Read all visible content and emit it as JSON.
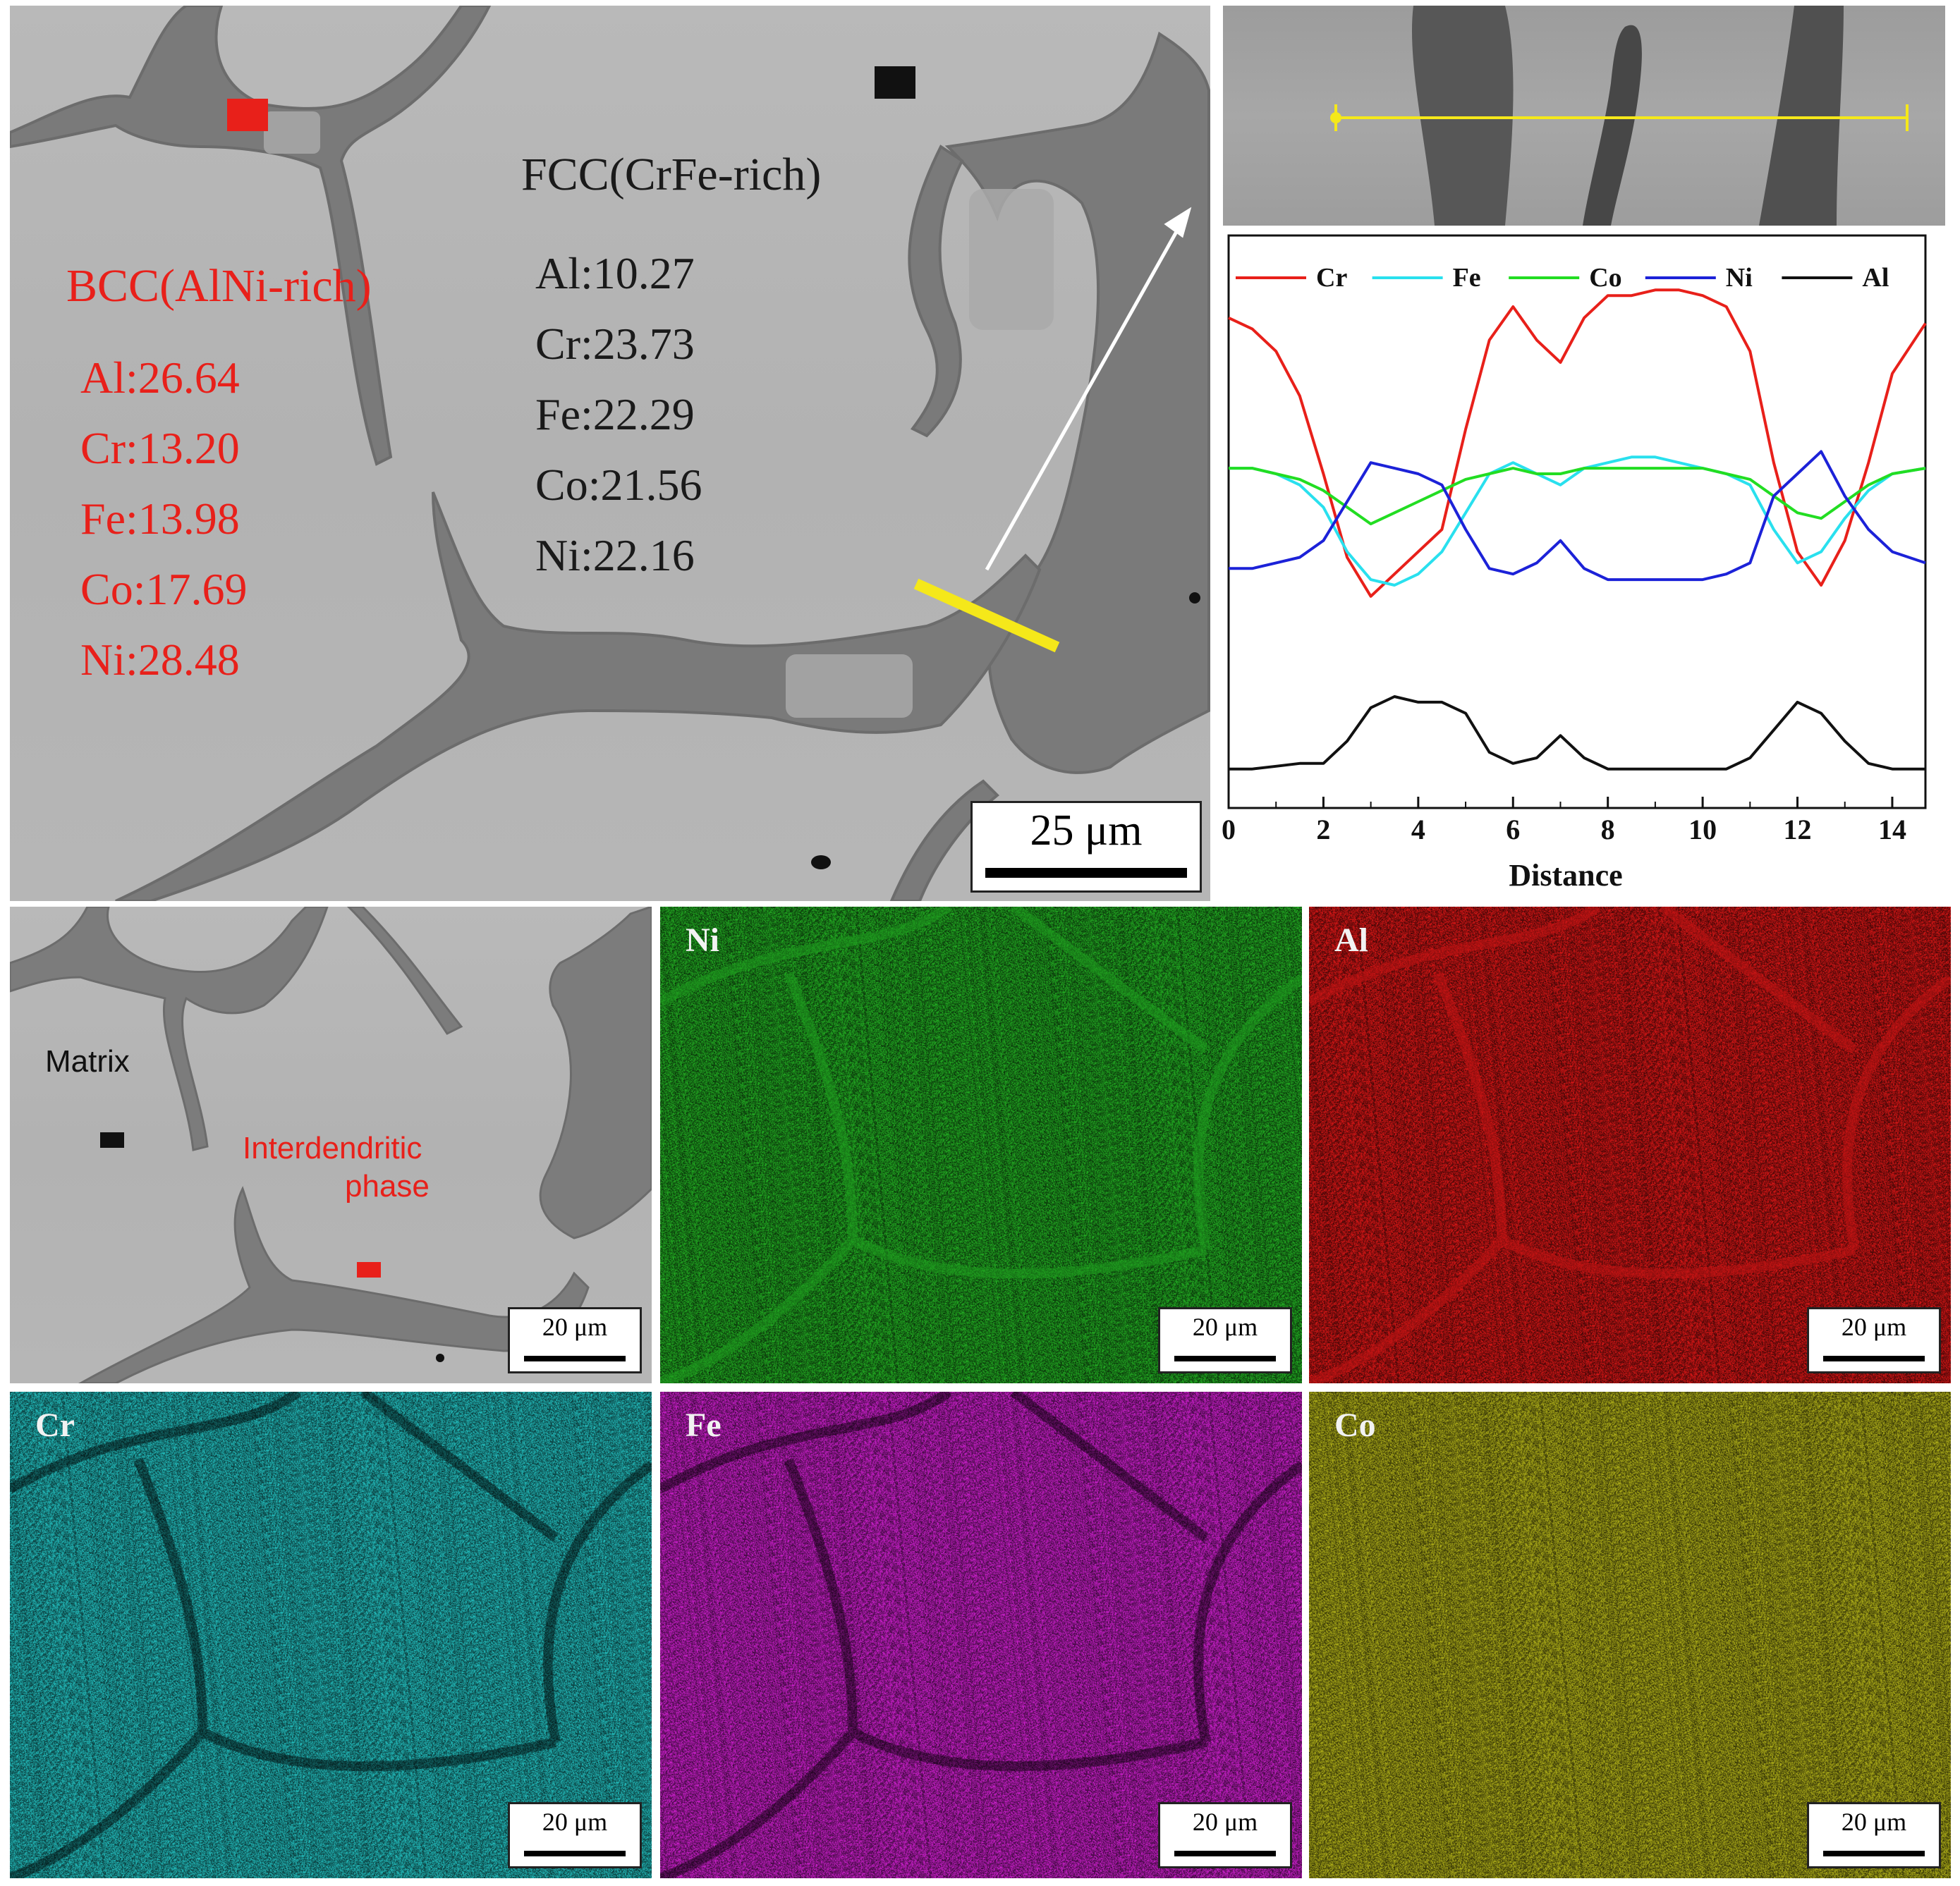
{
  "main_sem": {
    "bcc_title": "BCC(AlNi-rich)",
    "bcc_values": [
      "Al:26.64",
      "Cr:13.20",
      "Fe:13.98",
      "Co:17.69",
      "Ni:28.48"
    ],
    "fcc_title": "FCC(CrFe-rich)",
    "fcc_values": [
      "Al:10.27",
      "Cr:23.73",
      "Fe:22.29",
      "Co:21.56",
      "Ni:22.16"
    ],
    "scale": "25 μm",
    "colors": {
      "bcc_text": "#e8201a",
      "fcc_text": "#1a1a1a",
      "line_scan": "#f5e81a"
    }
  },
  "chart_data": {
    "type": "line",
    "title": "",
    "xlabel": "Distance",
    "ylabel": "",
    "xlim": [
      0,
      14.7
    ],
    "ylim": [
      0,
      100
    ],
    "x_ticks": [
      "0",
      "2",
      "4",
      "6",
      "8",
      "10",
      "12",
      "14"
    ],
    "legend_position": "top",
    "series": [
      {
        "name": "Cr",
        "color": "#e8201a",
        "x": [
          0,
          0.5,
          1,
          1.5,
          2,
          2.5,
          3,
          3.5,
          4,
          4.5,
          5,
          5.5,
          6,
          6.5,
          7,
          7.5,
          8,
          8.5,
          9,
          9.5,
          10,
          10.5,
          11,
          11.5,
          12,
          12.5,
          13,
          13.5,
          14,
          14.7
        ],
        "values": [
          88,
          86,
          82,
          74,
          60,
          45,
          38,
          42,
          46,
          50,
          68,
          84,
          90,
          84,
          80,
          88,
          92,
          92,
          93,
          93,
          92,
          90,
          82,
          62,
          46,
          40,
          48,
          62,
          78,
          87
        ]
      },
      {
        "name": "Fe",
        "color": "#29e0ee",
        "x": [
          0,
          0.5,
          1,
          1.5,
          2,
          2.5,
          3,
          3.5,
          4,
          4.5,
          5,
          5.5,
          6,
          6.5,
          7,
          7.5,
          8,
          8.5,
          9,
          9.5,
          10,
          10.5,
          11,
          11.5,
          12,
          12.5,
          13,
          13.5,
          14,
          14.7
        ],
        "values": [
          61,
          61,
          60,
          58,
          54,
          46,
          41,
          40,
          42,
          46,
          53,
          60,
          62,
          60,
          58,
          61,
          62,
          63,
          63,
          62,
          61,
          60,
          58,
          50,
          44,
          46,
          52,
          57,
          60,
          61
        ]
      },
      {
        "name": "Co",
        "color": "#22dd22",
        "x": [
          0,
          0.5,
          1,
          1.5,
          2,
          2.5,
          3,
          3.5,
          4,
          4.5,
          5,
          5.5,
          6,
          6.5,
          7,
          7.5,
          8,
          8.5,
          9,
          9.5,
          10,
          10.5,
          11,
          11.5,
          12,
          12.5,
          13,
          13.5,
          14,
          14.7
        ],
        "values": [
          61,
          61,
          60,
          59,
          57,
          54,
          51,
          53,
          55,
          57,
          59,
          60,
          61,
          60,
          60,
          61,
          61,
          61,
          61,
          61,
          61,
          60,
          59,
          56,
          53,
          52,
          55,
          58,
          60,
          61
        ]
      },
      {
        "name": "Ni",
        "color": "#1c22d8",
        "x": [
          0,
          0.5,
          1,
          1.5,
          2,
          2.5,
          3,
          3.5,
          4,
          4.5,
          5,
          5.5,
          6,
          6.5,
          7,
          7.5,
          8,
          8.5,
          9,
          9.5,
          10,
          10.5,
          11,
          11.5,
          12,
          12.5,
          13,
          13.5,
          14,
          14.7
        ],
        "values": [
          43,
          43,
          44,
          45,
          48,
          55,
          62,
          61,
          60,
          58,
          50,
          43,
          42,
          44,
          48,
          43,
          41,
          41,
          41,
          41,
          41,
          42,
          44,
          56,
          60,
          64,
          56,
          50,
          46,
          44
        ]
      },
      {
        "name": "Al",
        "color": "#111111",
        "x": [
          0,
          0.5,
          1,
          1.5,
          2,
          2.5,
          3,
          3.5,
          4,
          4.5,
          5,
          5.5,
          6,
          6.5,
          7,
          7.5,
          8,
          8.5,
          9,
          9.5,
          10,
          10.5,
          11,
          11.5,
          12,
          12.5,
          13,
          13.5,
          14,
          14.7
        ],
        "values": [
          7,
          7,
          7.5,
          8,
          8,
          12,
          18,
          20,
          19,
          19,
          17,
          10,
          8,
          9,
          13,
          9,
          7,
          7,
          7,
          7,
          7,
          7,
          9,
          14,
          19,
          17,
          12,
          8,
          7,
          7
        ]
      }
    ]
  },
  "inset": {
    "description_line": ""
  },
  "eds": {
    "matrix_label": "Matrix",
    "interdendritic_label": "Interdendritic\nphase",
    "interdendritic_line1": "Interdendritic",
    "interdendritic_line2": "phase",
    "scale": "20 μm",
    "maps": [
      {
        "element": "Ni",
        "color": "#1f9a1f"
      },
      {
        "element": "Al",
        "color": "#c01414"
      },
      {
        "element": "Cr",
        "color": "#1fa8a8"
      },
      {
        "element": "Fe",
        "color": "#b41cb4"
      },
      {
        "element": "Co",
        "color": "#9c9c16"
      }
    ]
  }
}
